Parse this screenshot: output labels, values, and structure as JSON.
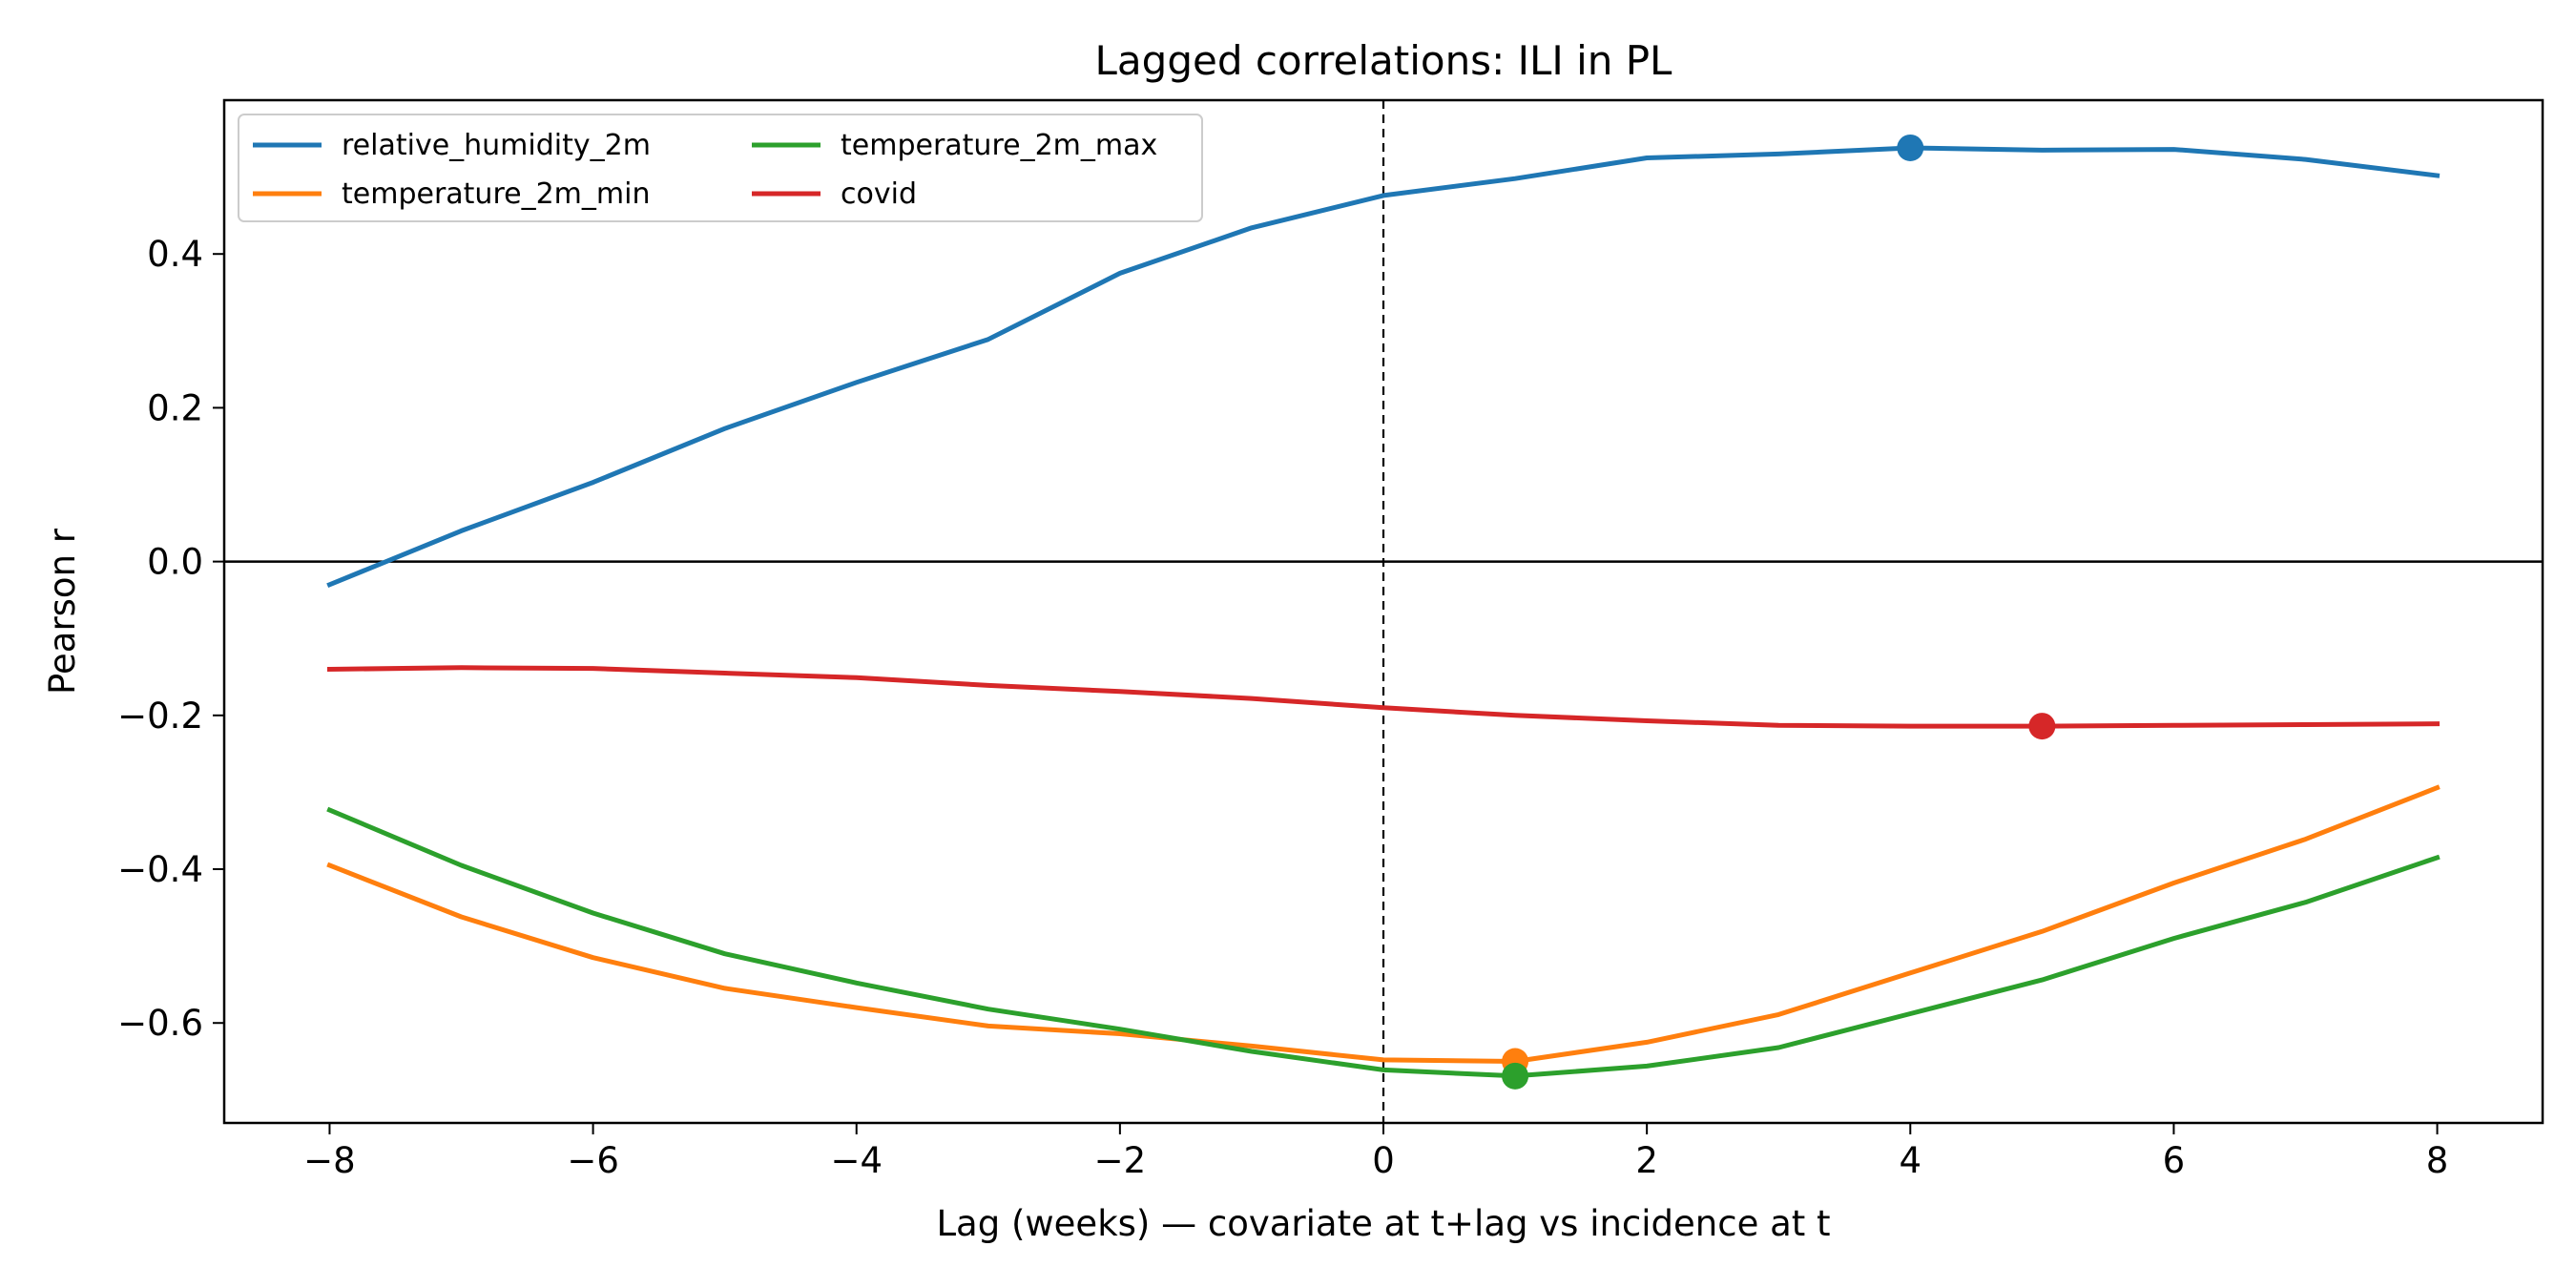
{
  "chart_data": {
    "type": "line",
    "title": "Lagged correlations: ILI in PL",
    "xlabel": "Lag (weeks) — covariate at t+lag vs incidence at t",
    "ylabel": "Pearson r",
    "xlim": [
      -8.8,
      8.8
    ],
    "ylim": [
      -0.73,
      0.6
    ],
    "xticks": [
      -8,
      -6,
      -4,
      -2,
      0,
      2,
      4,
      6,
      8
    ],
    "xtick_labels": [
      "−8",
      "−6",
      "−4",
      "−2",
      "0",
      "2",
      "4",
      "6",
      "8"
    ],
    "yticks": [
      -0.6,
      -0.4,
      -0.2,
      0.0,
      0.2,
      0.4
    ],
    "ytick_labels": [
      "−0.6",
      "−0.4",
      "−0.2",
      "0.0",
      "0.2",
      "0.4"
    ],
    "grid": false,
    "legend_position": "top-left",
    "legend_columns": 2,
    "reference_lines": {
      "vertical_dashed_x": 0,
      "horizontal_solid_y": 0
    },
    "x": [
      -8,
      -7,
      -6,
      -5,
      -4,
      -3,
      -2,
      -1,
      0,
      1,
      2,
      3,
      4,
      5,
      6,
      7,
      8
    ],
    "series": [
      {
        "name": "relative_humidity_2m",
        "color": "#1f77b4",
        "values": [
          -0.03,
          0.04,
          0.103,
          0.173,
          0.233,
          0.289,
          0.375,
          0.434,
          0.476,
          0.498,
          0.525,
          0.53,
          0.538,
          0.535,
          0.536,
          0.523,
          0.502
        ],
        "peak": {
          "x": 4,
          "y": 0.538
        }
      },
      {
        "name": "temperature_2m_min",
        "color": "#ff7f0e",
        "values": [
          -0.395,
          -0.462,
          -0.515,
          -0.555,
          -0.58,
          -0.604,
          -0.614,
          -0.63,
          -0.648,
          -0.65,
          -0.625,
          -0.589,
          -0.535,
          -0.481,
          -0.418,
          -0.361,
          -0.294
        ],
        "peak": {
          "x": 1,
          "y": -0.65
        }
      },
      {
        "name": "temperature_2m_max",
        "color": "#2ca02c",
        "values": [
          -0.323,
          -0.395,
          -0.457,
          -0.51,
          -0.548,
          -0.582,
          -0.608,
          -0.637,
          -0.661,
          -0.669,
          -0.656,
          -0.632,
          -0.588,
          -0.544,
          -0.49,
          -0.443,
          -0.385
        ],
        "peak": {
          "x": 1,
          "y": -0.669
        }
      },
      {
        "name": "covid",
        "color": "#d62728",
        "values": [
          -0.14,
          -0.138,
          -0.139,
          -0.145,
          -0.151,
          -0.161,
          -0.169,
          -0.178,
          -0.19,
          -0.2,
          -0.207,
          -0.213,
          -0.214,
          -0.214,
          -0.213,
          -0.212,
          -0.211
        ],
        "peak": {
          "x": 5,
          "y": -0.214
        }
      }
    ]
  }
}
